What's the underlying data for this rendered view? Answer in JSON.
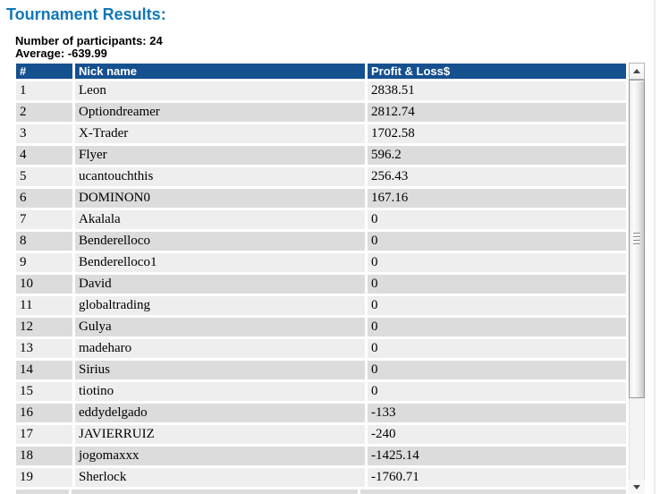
{
  "header": {
    "title": "Tournament Results:",
    "participants": "Number of participants: 24",
    "average": "Average: -639.99"
  },
  "table": {
    "columns": [
      "#",
      "Nick name",
      "Profit & Loss$"
    ],
    "rows": [
      {
        "rank": "1",
        "nick": "Leon",
        "pnl": "2838.51"
      },
      {
        "rank": "2",
        "nick": "Optiondreamer",
        "pnl": "2812.74"
      },
      {
        "rank": "3",
        "nick": "X-Trader",
        "pnl": "1702.58"
      },
      {
        "rank": "4",
        "nick": "Flyer",
        "pnl": "596.2"
      },
      {
        "rank": "5",
        "nick": "ucantouchthis",
        "pnl": "256.43"
      },
      {
        "rank": "6",
        "nick": "DOMINON0",
        "pnl": "167.16"
      },
      {
        "rank": "7",
        "nick": "Akalala",
        "pnl": "0"
      },
      {
        "rank": "8",
        "nick": "Benderelloco",
        "pnl": "0"
      },
      {
        "rank": "9",
        "nick": "Benderelloco1",
        "pnl": "0"
      },
      {
        "rank": "10",
        "nick": "David",
        "pnl": "0"
      },
      {
        "rank": "11",
        "nick": "globaltrading",
        "pnl": "0"
      },
      {
        "rank": "12",
        "nick": "Gulya",
        "pnl": "0"
      },
      {
        "rank": "13",
        "nick": "madeharo",
        "pnl": "0"
      },
      {
        "rank": "14",
        "nick": "Sirius",
        "pnl": "0"
      },
      {
        "rank": "15",
        "nick": "tiotino",
        "pnl": "0"
      },
      {
        "rank": "16",
        "nick": "eddydelgado",
        "pnl": "-133"
      },
      {
        "rank": "17",
        "nick": "JAVIERRUIZ",
        "pnl": "-240"
      },
      {
        "rank": "18",
        "nick": "jogomaxxx",
        "pnl": "-1425.14"
      },
      {
        "rank": "19",
        "nick": "Sherlock",
        "pnl": "-1760.71"
      }
    ]
  },
  "colors": {
    "title": "#1277b8",
    "header_bg": "#15508f",
    "row_odd": "#eeeeee",
    "row_even": "#dcdcdc"
  },
  "icons": {
    "scroll_up": "up-triangle",
    "scroll_down": "down-triangle"
  }
}
